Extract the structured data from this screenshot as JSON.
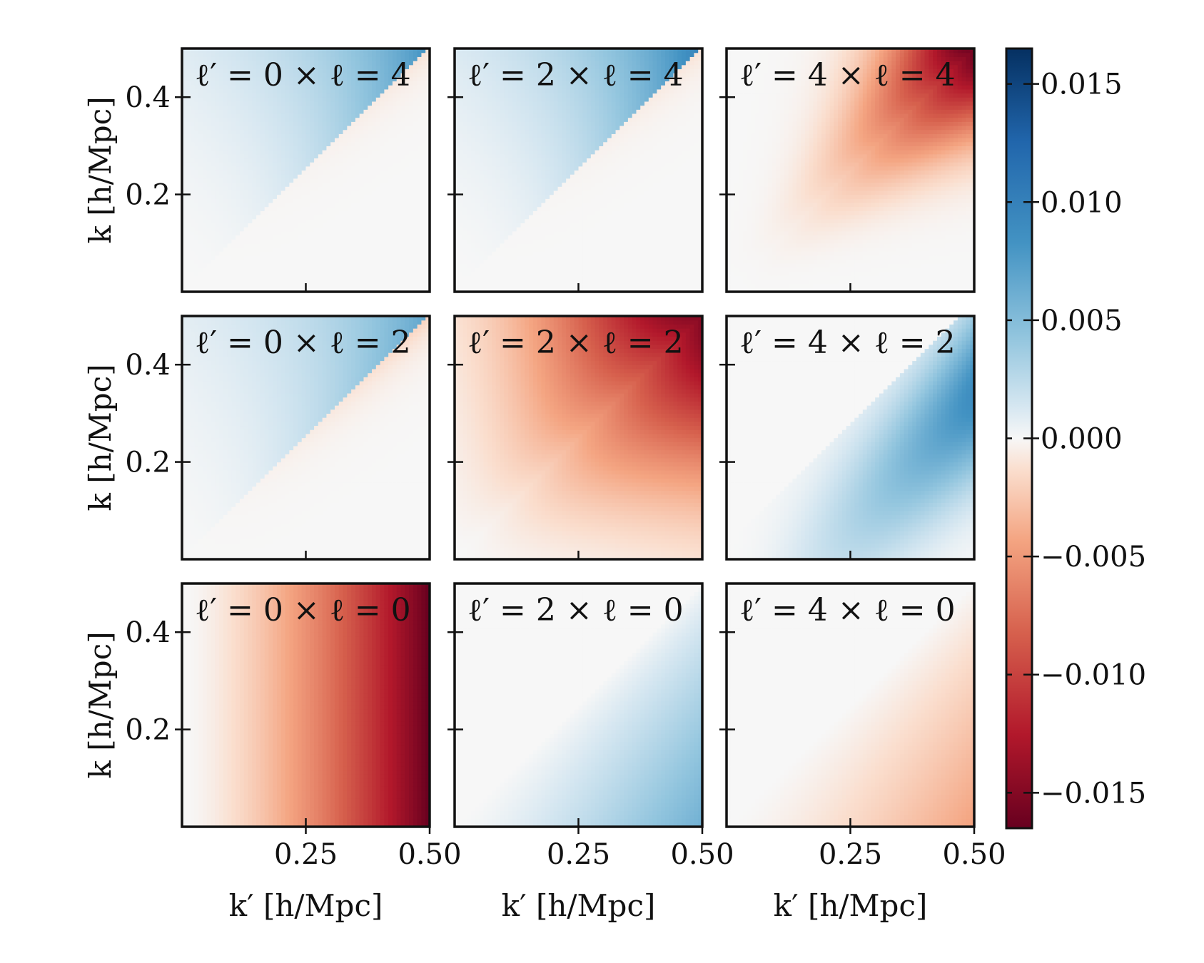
{
  "chart_data": {
    "type": "heatmap",
    "layout": {
      "rows": 3,
      "cols": 3
    },
    "x_range": [
      0.0,
      0.5
    ],
    "y_range": [
      0.0,
      0.5
    ],
    "x_ticks": [
      0.25,
      0.5
    ],
    "x_tick_labels": [
      "0.25",
      "0.50"
    ],
    "y_ticks": [
      0.2,
      0.4
    ],
    "y_tick_labels": [
      "0.2",
      "0.4"
    ],
    "xlabel": "k′ [h/Mpc]",
    "ylabel": "k [h/Mpc]",
    "colormap": "RdBu",
    "color_range": [
      -0.0165,
      0.0165
    ],
    "colorbar_ticks": [
      0.015,
      0.01,
      0.005,
      0.0,
      -0.005,
      -0.01,
      -0.015
    ],
    "colorbar_tick_labels": [
      "0.015",
      "0.010",
      "0.005",
      "0.000",
      "−0.005",
      "−0.010",
      "−0.015"
    ],
    "panels": [
      {
        "label": "ℓ′ = 0 × ℓ = 4",
        "row": 0,
        "col": 0,
        "model": "diag_split",
        "params": {
          "upper": 0.0085,
          "lower": -0.001,
          "power": 2.2
        }
      },
      {
        "label": "ℓ′ = 2 × ℓ = 4",
        "row": 0,
        "col": 1,
        "model": "diag_split",
        "params": {
          "upper": 0.01,
          "lower": -0.001,
          "power": 2.2
        }
      },
      {
        "label": "ℓ′ = 4 × ℓ = 4",
        "row": 0,
        "col": 2,
        "model": "diagonal",
        "params": {
          "peak": -0.016,
          "power": 2.6
        }
      },
      {
        "label": "ℓ′ = 0 × ℓ = 2",
        "row": 1,
        "col": 0,
        "model": "diag_split",
        "params": {
          "upper": 0.007,
          "lower": -0.0018,
          "power": 1.8
        }
      },
      {
        "label": "ℓ′ = 2 × ℓ = 2",
        "row": 1,
        "col": 1,
        "model": "diagonal_wide",
        "params": {
          "peak": -0.015,
          "power": 2.0
        }
      },
      {
        "label": "ℓ′ = 4 × ℓ = 2",
        "row": 1,
        "col": 2,
        "model": "lower_band",
        "params": {
          "peak": 0.009,
          "power": 1.6
        }
      },
      {
        "label": "ℓ′ = 0 × ℓ = 0",
        "row": 2,
        "col": 0,
        "model": "x_only",
        "params": {
          "peak": -0.0165,
          "power": 1.6
        }
      },
      {
        "label": "ℓ′ = 2 × ℓ = 0",
        "row": 2,
        "col": 1,
        "model": "lower_right",
        "params": {
          "peak": 0.006,
          "power": 1.5
        }
      },
      {
        "label": "ℓ′ = 4 × ℓ = 0",
        "row": 2,
        "col": 2,
        "model": "lower_right",
        "params": {
          "peak": -0.0045,
          "power": 1.7
        }
      }
    ]
  }
}
